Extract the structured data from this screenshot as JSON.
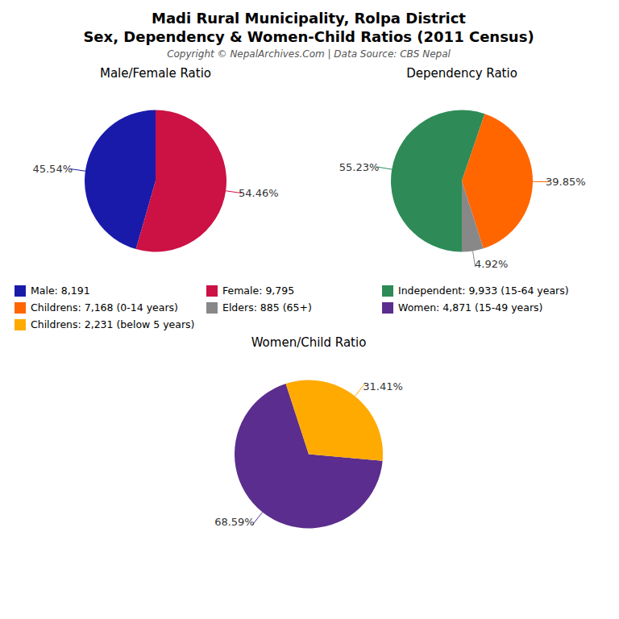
{
  "title": "Madi Rural Municipality, Rolpa District",
  "subtitle": "Sex, Dependency & Women-Child Ratios (2011 Census)",
  "annotations": [
    "Copyright © NepalArchives.Com | Data Source: CBS Nepal"
  ],
  "chart_data": [
    {
      "type": "pie",
      "title": "Male/Female Ratio",
      "categories": [
        "Male: 8,191",
        "Female: 9,795"
      ],
      "values": [
        45.54,
        54.46
      ],
      "value_labels": [
        "45.54%",
        "54.46%"
      ],
      "colors": [
        "#1a1aaa",
        "#cc1144"
      ],
      "data_labels": true,
      "legend": "bottom"
    },
    {
      "type": "pie",
      "title": "Dependency Ratio",
      "categories": [
        "Independent: 9,933 (15-64 years)",
        "Childrens: 7,168 (0-14 years)",
        "Elders: 885 (65+)"
      ],
      "values": [
        55.23,
        39.85,
        4.92
      ],
      "value_labels": [
        "55.23%",
        "39.85%",
        "4.92%"
      ],
      "colors": [
        "#2e8b57",
        "#ff6600",
        "#888888"
      ],
      "data_labels": true,
      "legend": "bottom"
    },
    {
      "type": "pie",
      "title": "Women/Child Ratio",
      "categories": [
        "Women: 4,871 (15-49 years)",
        "Childrens: 2,231 (below 5 years)"
      ],
      "values": [
        68.59,
        31.41
      ],
      "value_labels": [
        "68.59%",
        "31.41%"
      ],
      "colors": [
        "#5b2d8e",
        "#ffaa00"
      ],
      "data_labels": true,
      "legend": "bottom"
    }
  ]
}
